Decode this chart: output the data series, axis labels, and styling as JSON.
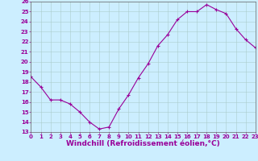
{
  "x": [
    0,
    1,
    2,
    3,
    4,
    5,
    6,
    7,
    8,
    9,
    10,
    11,
    12,
    13,
    14,
    15,
    16,
    17,
    18,
    19,
    20,
    21,
    22,
    23
  ],
  "y": [
    18.5,
    17.5,
    16.2,
    16.2,
    15.8,
    15.0,
    14.0,
    13.3,
    13.5,
    15.3,
    16.7,
    18.4,
    19.8,
    21.6,
    22.7,
    24.2,
    25.0,
    25.0,
    25.7,
    25.2,
    24.8,
    23.3,
    22.2,
    21.4
  ],
  "line_color": "#990099",
  "marker": "+",
  "marker_size": 3,
  "marker_linewidth": 0.8,
  "background_color": "#cceeff",
  "grid_color": "#aacccc",
  "xlabel": "Windchill (Refroidissement éolien,°C)",
  "xlabel_color": "#990099",
  "ylim": [
    13,
    26
  ],
  "xlim": [
    0,
    23
  ],
  "yticks": [
    13,
    14,
    15,
    16,
    17,
    18,
    19,
    20,
    21,
    22,
    23,
    24,
    25,
    26
  ],
  "xticks": [
    0,
    1,
    2,
    3,
    4,
    5,
    6,
    7,
    8,
    9,
    10,
    11,
    12,
    13,
    14,
    15,
    16,
    17,
    18,
    19,
    20,
    21,
    22,
    23
  ],
  "tick_color": "#990099",
  "tick_fontsize": 5.0,
  "xlabel_fontsize": 6.5,
  "linewidth": 0.8
}
